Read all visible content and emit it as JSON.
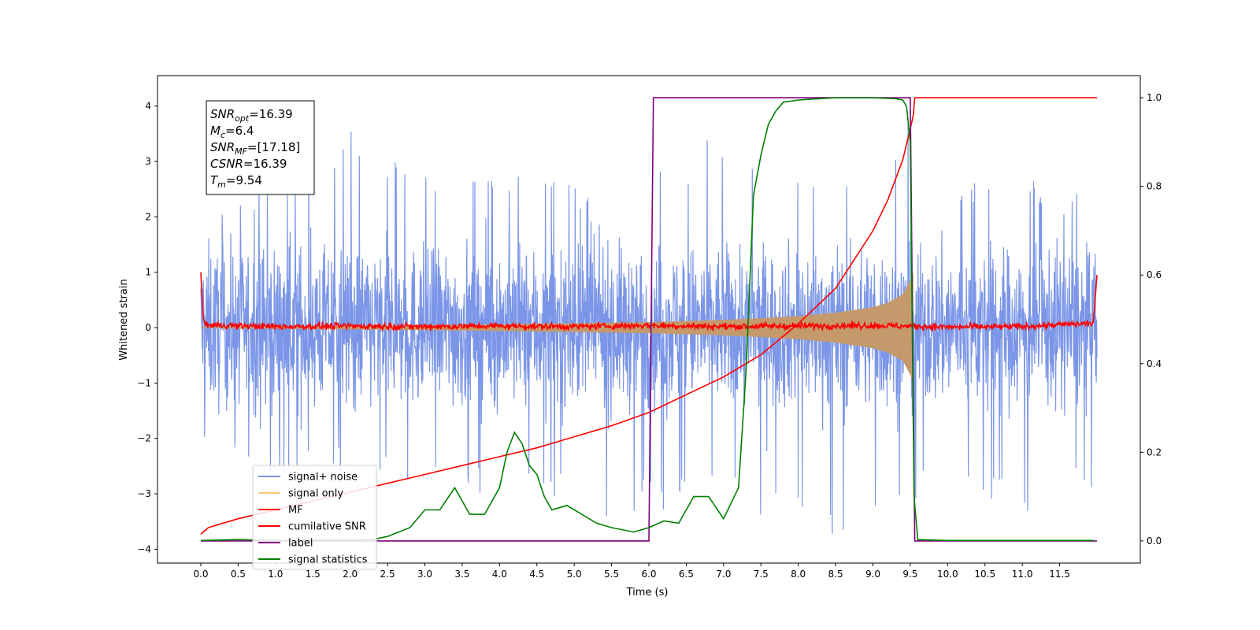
{
  "chart_data": {
    "type": "line",
    "xlabel": "Time (s)",
    "ylabel": "Whitened strain",
    "xlim": [
      -0.58,
      12.58
    ],
    "ylim": [
      -4.25,
      4.55
    ],
    "y2lim": [
      -0.05,
      1.05
    ],
    "x_ticks": [
      0.0,
      0.5,
      1.0,
      1.5,
      2.0,
      2.5,
      3.0,
      3.5,
      4.0,
      4.5,
      5.0,
      5.5,
      6.0,
      6.5,
      7.0,
      7.5,
      8.0,
      8.5,
      9.0,
      9.5,
      10.0,
      10.5,
      11.0,
      11.5
    ],
    "x_tick_labels": [
      "0.0",
      "0.5",
      "1.0",
      "1.5",
      "2.0",
      "2.5",
      "3.0",
      "3.5",
      "4.0",
      "4.5",
      "5.0",
      "5.5",
      "6.0",
      "6.5",
      "7.0",
      "7.5",
      "8.0",
      "8.5",
      "9.0",
      "9.5",
      "10.0",
      "10.5",
      "11.0",
      "11.5"
    ],
    "y_ticks": [
      4,
      3,
      2,
      1,
      0,
      -1,
      -2,
      -3,
      -4
    ],
    "y_tick_labels": [
      "4",
      "3",
      "2",
      "1",
      "0",
      "−1",
      "−2",
      "−3",
      "−4"
    ],
    "y2_ticks": [
      1.0,
      0.8,
      0.6,
      0.4,
      0.2,
      0.0
    ],
    "y2_tick_labels": [
      "1.0",
      "0.8",
      "0.6",
      "0.4",
      "0.2",
      "0.0"
    ],
    "grid": false,
    "legend_position": "lower-left",
    "annotation": {
      "lines": [
        {
          "base": "SNR",
          "sub": "opt",
          "value": "=16.39"
        },
        {
          "base": "M",
          "sub": "c",
          "value": "=6.4"
        },
        {
          "base": "SNR",
          "sub": "MF",
          "value": "=[17.18]"
        },
        {
          "base": "CSNR",
          "sub": "",
          "value": "=16.39"
        },
        {
          "base": "T",
          "sub": "m",
          "value": "=9.54"
        }
      ]
    },
    "series": [
      {
        "name": "signal+ noise",
        "color": "#7b96e8",
        "axis": "left",
        "x_range": [
          0.0,
          12.0
        ],
        "approx_upper_envelope": [
          [
            0.0,
            2.4
          ],
          [
            1.0,
            2.7
          ],
          [
            2.0,
            3.7
          ],
          [
            3.0,
            2.9
          ],
          [
            4.0,
            2.8
          ],
          [
            5.0,
            2.6
          ],
          [
            6.0,
            2.8
          ],
          [
            7.0,
            3.6
          ],
          [
            8.0,
            2.9
          ],
          [
            9.0,
            3.1
          ],
          [
            9.5,
            3.9
          ],
          [
            10.0,
            2.6
          ],
          [
            11.0,
            2.7
          ],
          [
            12.0,
            2.4
          ]
        ],
        "approx_lower_envelope": [
          [
            0.0,
            -2.3
          ],
          [
            1.0,
            -2.7
          ],
          [
            2.0,
            -2.6
          ],
          [
            3.0,
            -2.9
          ],
          [
            4.0,
            -3.1
          ],
          [
            5.0,
            -3.1
          ],
          [
            5.5,
            -3.5
          ],
          [
            6.0,
            -3.3
          ],
          [
            7.0,
            -3.3
          ],
          [
            8.25,
            -3.9
          ],
          [
            9.0,
            -3.5
          ],
          [
            10.0,
            -3.0
          ],
          [
            11.0,
            -3.4
          ],
          [
            12.0,
            -2.9
          ]
        ],
        "typical_amplitude": 1.3
      },
      {
        "name": "signal only",
        "color": "#c49a6c",
        "axis": "left",
        "note_values": "chirp envelope amplitude vs time",
        "x": [
          0.0,
          2.0,
          4.0,
          5.0,
          6.0,
          7.0,
          7.5,
          8.0,
          8.5,
          9.0,
          9.2,
          9.4,
          9.5,
          9.54
        ],
        "amplitude": [
          0.01,
          0.03,
          0.06,
          0.08,
          0.1,
          0.14,
          0.17,
          0.21,
          0.27,
          0.37,
          0.45,
          0.6,
          0.85,
          1.0
        ]
      },
      {
        "name": "MF",
        "color": "#ff0000",
        "axis": "left",
        "x": [
          0.0,
          0.03,
          0.06,
          1.0,
          2.0,
          3.0,
          4.0,
          5.0,
          6.0,
          7.0,
          8.0,
          9.0,
          10.0,
          11.0,
          11.95,
          12.0
        ],
        "y": [
          1.0,
          0.2,
          0.05,
          0.02,
          0.03,
          0.02,
          0.03,
          0.02,
          0.04,
          0.02,
          0.03,
          0.04,
          0.01,
          0.02,
          0.08,
          0.95
        ],
        "noise": 0.05
      },
      {
        "name": "cumilative SNR",
        "color": "#ff0000",
        "axis": "right",
        "x": [
          0.0,
          0.1,
          0.5,
          1.0,
          1.5,
          2.0,
          2.5,
          3.0,
          3.5,
          4.0,
          4.5,
          5.0,
          5.5,
          6.0,
          6.5,
          7.0,
          7.5,
          8.0,
          8.5,
          9.0,
          9.2,
          9.4,
          9.5,
          9.54,
          9.56,
          12.0
        ],
        "y": [
          0.015,
          0.03,
          0.05,
          0.07,
          0.09,
          0.11,
          0.13,
          0.15,
          0.17,
          0.19,
          0.21,
          0.235,
          0.26,
          0.29,
          0.33,
          0.37,
          0.42,
          0.49,
          0.57,
          0.7,
          0.77,
          0.86,
          0.93,
          0.96,
          1.0,
          1.0
        ]
      },
      {
        "name": "label",
        "color": "#800080",
        "axis": "right",
        "x": [
          0.0,
          6.0,
          6.06,
          9.5,
          9.56,
          12.0
        ],
        "y": [
          0.0,
          0.0,
          1.0,
          1.0,
          0.0,
          0.0
        ]
      },
      {
        "name": "signal statistics",
        "color": "#008000",
        "axis": "right",
        "x": [
          0.0,
          0.5,
          1.0,
          1.5,
          2.0,
          2.3,
          2.5,
          2.8,
          3.0,
          3.2,
          3.4,
          3.6,
          3.8,
          4.0,
          4.1,
          4.2,
          4.3,
          4.4,
          4.5,
          4.6,
          4.7,
          4.9,
          5.1,
          5.3,
          5.5,
          5.8,
          6.0,
          6.2,
          6.4,
          6.6,
          6.8,
          7.0,
          7.2,
          7.3,
          7.4,
          7.5,
          7.6,
          7.7,
          7.8,
          8.0,
          8.5,
          9.0,
          9.3,
          9.4,
          9.45,
          9.5,
          9.55,
          9.6,
          10.0,
          11.0,
          11.95
        ],
        "y": [
          0.001,
          0.003,
          0.001,
          0.002,
          0.002,
          0.003,
          0.01,
          0.03,
          0.07,
          0.07,
          0.12,
          0.06,
          0.06,
          0.12,
          0.2,
          0.245,
          0.22,
          0.17,
          0.15,
          0.1,
          0.07,
          0.08,
          0.06,
          0.04,
          0.03,
          0.02,
          0.03,
          0.045,
          0.04,
          0.1,
          0.1,
          0.05,
          0.12,
          0.38,
          0.78,
          0.87,
          0.94,
          0.97,
          0.99,
          0.995,
          1.0,
          1.0,
          0.998,
          0.995,
          0.98,
          0.9,
          0.1,
          0.003,
          0.001,
          0.001,
          0.001
        ]
      }
    ]
  }
}
